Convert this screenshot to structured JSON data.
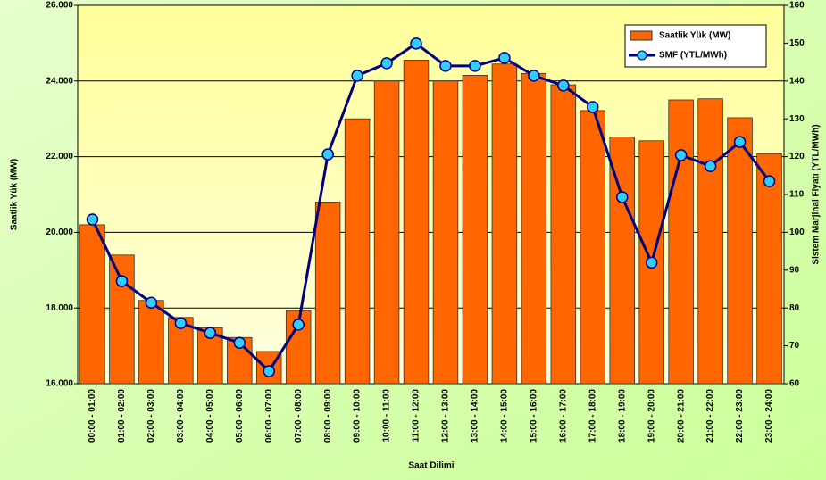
{
  "chart_data": {
    "type": "bar",
    "x_label": "Saat Dilimi",
    "y_label": "Saatlik Yük (MW)",
    "y2_label": "Sistem Marjinal Fiyatı (YTL/MWh)",
    "categories": [
      "00:00 - 01:00",
      "01:00 - 02:00",
      "02:00 - 03:00",
      "03:00 - 04:00",
      "04:00 - 05:00",
      "05:00 - 06:00",
      "06:00 - 07:00",
      "07:00 - 08:00",
      "08:00 - 09:00",
      "09:00 - 10:00",
      "10:00 - 11:00",
      "11:00 - 12:00",
      "12:00 - 13:00",
      "13:00 - 14:00",
      "14:00 - 15:00",
      "15:00 - 16:00",
      "16:00 - 17:00",
      "17:00 - 18:00",
      "18:00 - 19:00",
      "19:00 - 20:00",
      "20:00 - 21:00",
      "21:00 - 22:00",
      "22:00 - 23:00",
      "23:00 - 24:00"
    ],
    "series": [
      {
        "name": "Saatlik Yük (MW)",
        "type": "bar",
        "color": "#ff6600",
        "values": [
          20200,
          19400,
          18200,
          17750,
          17480,
          17220,
          16850,
          17930,
          20800,
          23000,
          24000,
          24550,
          24000,
          24150,
          24450,
          24200,
          23900,
          23220,
          22520,
          22420,
          23500,
          23530,
          23030,
          22080
        ]
      },
      {
        "name": "SMF (YTL/MWh)",
        "type": "line",
        "axis": "y2",
        "color": "#000080",
        "marker_color": "#33ccff",
        "values": [
          103.4,
          87.1,
          81.4,
          76,
          73.4,
          70.8,
          63.3,
          75.6,
          120.6,
          141.4,
          144.7,
          149.9,
          144,
          144,
          146.1,
          141.4,
          138.8,
          133.1,
          109.3,
          92,
          120.4,
          117.5,
          123.9,
          113.5
        ]
      }
    ],
    "ylim": [
      16000,
      26000
    ],
    "yticks": [
      {
        "value": 16000,
        "label": "16.000"
      },
      {
        "value": 18000,
        "label": "18.000"
      },
      {
        "value": 20000,
        "label": "20.000"
      },
      {
        "value": 22000,
        "label": "22.000"
      },
      {
        "value": 24000,
        "label": "24.000"
      },
      {
        "value": 26000,
        "label": "26.000"
      }
    ],
    "y2lim": [
      60,
      160
    ],
    "y2ticks": [
      60,
      70,
      80,
      90,
      100,
      110,
      120,
      130,
      140,
      150,
      160
    ],
    "grid": true,
    "legend": "top-right"
  }
}
